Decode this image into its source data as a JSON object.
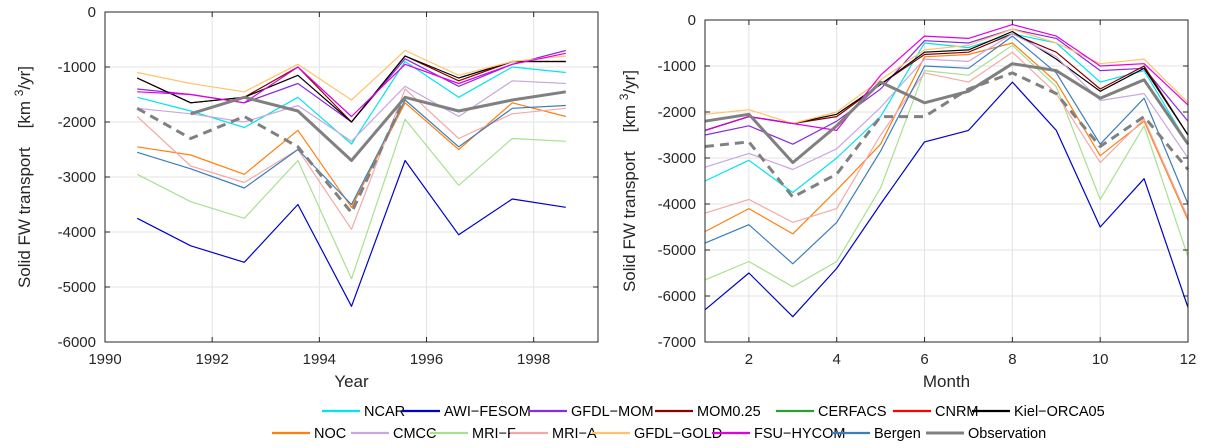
{
  "chart_data": [
    {
      "type": "line",
      "xlabel": "Year",
      "ylabel_main": "Solid FW transport",
      "ylabel_unit_pre": "[km ",
      "ylabel_unit_sup": "3",
      "ylabel_unit_post": "/yr]",
      "xlim": [
        1990,
        1999.2
      ],
      "ylim": [
        -6000,
        0
      ],
      "xticks": [
        1990,
        1992,
        1994,
        1996,
        1998
      ],
      "yticks": [
        0,
        -1000,
        -2000,
        -3000,
        -4000,
        -5000,
        -6000
      ],
      "grid": true,
      "x": [
        1990.6,
        1991.6,
        1992.6,
        1993.6,
        1994.6,
        1995.6,
        1996.6,
        1997.6,
        1998.6
      ],
      "series": [
        {
          "name": "NCAR",
          "color": "#00e5ee",
          "values": [
            -1550,
            -1800,
            -2100,
            -1550,
            -2400,
            -900,
            -1550,
            -1000,
            -1100
          ]
        },
        {
          "name": "AWI-FESOM",
          "color": "#0000cc",
          "values": [
            -3750,
            -4250,
            -4550,
            -3500,
            -5350,
            -2700,
            -4050,
            -3400,
            -3550
          ]
        },
        {
          "name": "GFDL-MOM",
          "color": "#8a2be2",
          "values": [
            -1400,
            -1500,
            -1650,
            -1300,
            -2000,
            -850,
            -1350,
            -950,
            -700
          ]
        },
        {
          "name": "MOM0.25",
          "color": "#8b0000",
          "values": [
            -1200,
            -1650,
            -1550,
            -1000,
            -2000,
            -800,
            -1250,
            -900,
            -900
          ]
        },
        {
          "name": "Kiel-ORCA05",
          "color": "#000000",
          "values": [
            -1200,
            -1650,
            -1550,
            -1150,
            -2000,
            -800,
            -1200,
            -900,
            -900
          ]
        },
        {
          "name": "NOC",
          "color": "#ff7f0e",
          "values": [
            -2450,
            -2600,
            -2950,
            -2150,
            -3550,
            -1650,
            -2500,
            -1650,
            -1900
          ]
        },
        {
          "name": "CMCC",
          "color": "#c8a8e0",
          "values": [
            -1750,
            -1850,
            -2000,
            -1700,
            -2350,
            -1350,
            -1900,
            -1250,
            -1300
          ]
        },
        {
          "name": "MRI-F",
          "color": "#a8e090",
          "values": [
            -2950,
            -3450,
            -3750,
            -2700,
            -4850,
            -1950,
            -3150,
            -2300,
            -2350
          ]
        },
        {
          "name": "MRI-A",
          "color": "#f4a8a8",
          "values": [
            -1900,
            -2800,
            -3100,
            -2500,
            -3950,
            -1400,
            -2300,
            -1850,
            -1750
          ]
        },
        {
          "name": "GFDL-GOLD",
          "color": "#ffc46b",
          "values": [
            -1100,
            -1300,
            -1450,
            -950,
            -1600,
            -700,
            -1150,
            -900,
            -800
          ]
        },
        {
          "name": "FSU-HYCOM",
          "color": "#e000e0",
          "values": [
            -1450,
            -1500,
            -1650,
            -1000,
            -1900,
            -950,
            -1300,
            -950,
            -750
          ]
        },
        {
          "name": "Bergen",
          "color": "#3a7dbd",
          "values": [
            -2550,
            -2850,
            -3200,
            -2500,
            -3500,
            -1600,
            -2450,
            -1750,
            -1700
          ]
        },
        {
          "name": "Observation",
          "color": "#808080",
          "dashed": false,
          "thick": true,
          "values": [
            null,
            -1850,
            -1550,
            -1800,
            -2700,
            -1550,
            -1800,
            -1600,
            -1450
          ]
        },
        {
          "name": "",
          "color": "#808080",
          "dashed": true,
          "thick": true,
          "values": [
            -1750,
            -2300,
            -1900,
            -2450,
            -3650,
            -1550,
            null,
            null,
            null
          ]
        }
      ]
    },
    {
      "type": "line",
      "xlabel": "Month",
      "ylabel_main": "Solid FW transport",
      "ylabel_unit_pre": "[km ",
      "ylabel_unit_sup": "3",
      "ylabel_unit_post": "/yr]",
      "xlim": [
        1,
        12
      ],
      "ylim": [
        -7000,
        0
      ],
      "xticks": [
        2,
        4,
        6,
        8,
        10,
        12
      ],
      "yticks": [
        0,
        -1000,
        -2000,
        -3000,
        -4000,
        -5000,
        -6000,
        -7000
      ],
      "grid": true,
      "x": [
        1,
        2,
        3,
        4,
        5,
        6,
        7,
        8,
        9,
        10,
        11,
        12
      ],
      "series": [
        {
          "name": "NCAR",
          "color": "#00e5ee",
          "values": [
            -3500,
            -3050,
            -3750,
            -3000,
            -2100,
            -500,
            -600,
            -300,
            -500,
            -1350,
            -1100,
            -2700
          ]
        },
        {
          "name": "AWI-FESOM",
          "color": "#0000cc",
          "values": [
            -6300,
            -5500,
            -6450,
            -5400,
            -4000,
            -2650,
            -2400,
            -1350,
            -2400,
            -4500,
            -3450,
            -6250
          ]
        },
        {
          "name": "GFDL-MOM",
          "color": "#8a2be2",
          "values": [
            -2500,
            -2300,
            -2700,
            -2200,
            -1500,
            -450,
            -500,
            -200,
            -400,
            -1100,
            -1050,
            -2200
          ]
        },
        {
          "name": "MOM0.25",
          "color": "#8b0000",
          "values": [
            -2400,
            -2100,
            -2250,
            -2100,
            -1400,
            -750,
            -700,
            -300,
            -700,
            -1500,
            -1000,
            -2500
          ]
        },
        {
          "name": "Kiel-ORCA05",
          "color": "#000000",
          "values": [
            -2400,
            -2100,
            -2250,
            -2050,
            -1400,
            -700,
            -650,
            -250,
            -850,
            -1550,
            -1050,
            -2500
          ]
        },
        {
          "name": "NOC",
          "color": "#ff7f0e",
          "values": [
            -4600,
            -4100,
            -4650,
            -3700,
            -2700,
            -800,
            -750,
            -500,
            -1350,
            -2950,
            -2200,
            -4350
          ]
        },
        {
          "name": "CMCC",
          "color": "#c8a8e0",
          "values": [
            -3200,
            -2900,
            -3250,
            -2800,
            -1900,
            -850,
            -900,
            -300,
            -800,
            -1750,
            -1600,
            -3000
          ]
        },
        {
          "name": "MRI-F",
          "color": "#a8e090",
          "values": [
            -5650,
            -5250,
            -5800,
            -5250,
            -3650,
            -1100,
            -1200,
            -550,
            -1450,
            -3900,
            -2300,
            -5150
          ]
        },
        {
          "name": "MRI-A",
          "color": "#f4a8a8",
          "values": [
            -4200,
            -3900,
            -4400,
            -4100,
            -2500,
            -1150,
            -1350,
            -700,
            -1600,
            -3100,
            -2150,
            -4300
          ]
        },
        {
          "name": "GFDL-GOLD",
          "color": "#ffc46b",
          "values": [
            -2050,
            -1950,
            -2250,
            -2000,
            -1300,
            -650,
            -550,
            -200,
            -500,
            -950,
            -850,
            -1800
          ]
        },
        {
          "name": "FSU-HYCOM",
          "color": "#e000e0",
          "values": [
            -2400,
            -2100,
            -2250,
            -2400,
            -1200,
            -350,
            -400,
            -100,
            -350,
            -1000,
            -950,
            -1850
          ]
        },
        {
          "name": "Bergen",
          "color": "#3a7dbd",
          "values": [
            -4850,
            -4450,
            -5300,
            -4400,
            -2850,
            -1000,
            -1050,
            -350,
            -1150,
            -2700,
            -1700,
            -4000
          ]
        },
        {
          "name": "Observation",
          "color": "#808080",
          "dashed": false,
          "thick": true,
          "values": [
            -2200,
            -2050,
            -3100,
            -2300,
            -1350,
            -1800,
            -1550,
            -950,
            -1100,
            -1700,
            -1300,
            -2700
          ]
        },
        {
          "name": "",
          "color": "#808080",
          "dashed": true,
          "thick": true,
          "values": [
            -2750,
            -2650,
            -3850,
            -3350,
            -2100,
            -2100,
            -1500,
            -1150,
            -1600,
            -2750,
            -2100,
            -3250
          ]
        }
      ]
    }
  ],
  "legend": {
    "row1": [
      {
        "name": "NCAR",
        "color": "#00e5ee"
      },
      {
        "name": "AWI−FESOM",
        "color": "#0000cc"
      },
      {
        "name": "GFDL−MOM",
        "color": "#8a2be2"
      },
      {
        "name": "MOM0.25",
        "color": "#8b0000"
      },
      {
        "name": "CERFACS",
        "color": "#2ca02c"
      },
      {
        "name": "CNRM",
        "color": "#ff0000"
      },
      {
        "name": "Kiel−ORCA05",
        "color": "#000000"
      }
    ],
    "row2": [
      {
        "name": "NOC",
        "color": "#ff7f0e"
      },
      {
        "name": "CMCC",
        "color": "#c8a8e0"
      },
      {
        "name": "MRI−F",
        "color": "#a8e090"
      },
      {
        "name": "MRI−A",
        "color": "#f4a8a8"
      },
      {
        "name": "GFDL−GOLD",
        "color": "#ffc46b"
      },
      {
        "name": "FSU−HYCOM",
        "color": "#e000e0"
      },
      {
        "name": "Bergen",
        "color": "#3a7dbd"
      },
      {
        "name": "Observation",
        "color": "#808080"
      }
    ]
  }
}
